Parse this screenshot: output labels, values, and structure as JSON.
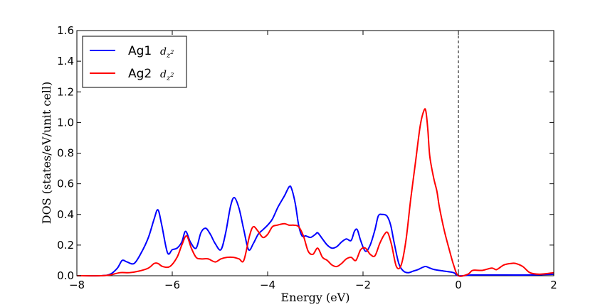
{
  "chart_data": {
    "type": "line",
    "title": "",
    "xlabel": "Energy (eV)",
    "ylabel": "DOS (states/eV/unit cell)",
    "xlim": [
      -8,
      2
    ],
    "ylim": [
      0,
      1.6
    ],
    "xticks": [
      -8,
      -6,
      -4,
      -2,
      0,
      2
    ],
    "yticks": [
      0.0,
      0.2,
      0.4,
      0.6,
      0.8,
      1.0,
      1.2,
      1.4,
      1.6
    ],
    "xtick_labels": [
      "−8",
      "−6",
      "−4",
      "−2",
      "0",
      "2"
    ],
    "ytick_labels": [
      "0.0",
      "0.2",
      "0.4",
      "0.6",
      "0.8",
      "1.0",
      "1.2",
      "1.4",
      "1.6"
    ],
    "grid": false,
    "legend_position": "top-left",
    "fermi_level": 0,
    "series": [
      {
        "name": "Ag1",
        "subscript_base": "d",
        "subscript": "z",
        "superscript": "2",
        "color": "#0000ff",
        "x": [
          -8.0,
          -7.5,
          -7.3,
          -7.15,
          -7.05,
          -6.95,
          -6.8,
          -6.65,
          -6.5,
          -6.38,
          -6.3,
          -6.22,
          -6.1,
          -6.0,
          -5.9,
          -5.8,
          -5.72,
          -5.62,
          -5.5,
          -5.4,
          -5.3,
          -5.2,
          -5.1,
          -4.98,
          -4.88,
          -4.78,
          -4.7,
          -4.6,
          -4.5,
          -4.4,
          -4.3,
          -4.2,
          -4.1,
          -4.0,
          -3.9,
          -3.78,
          -3.65,
          -3.55,
          -3.5,
          -3.42,
          -3.35,
          -3.28,
          -3.2,
          -3.1,
          -3.0,
          -2.95,
          -2.85,
          -2.75,
          -2.65,
          -2.55,
          -2.45,
          -2.35,
          -2.25,
          -2.18,
          -2.12,
          -2.05,
          -1.95,
          -1.85,
          -1.75,
          -1.68,
          -1.6,
          -1.5,
          -1.42,
          -1.35,
          -1.25,
          -1.15,
          -1.05,
          -0.95,
          -0.85,
          -0.7,
          -0.6,
          -0.5,
          -0.3,
          -0.1,
          0.0,
          0.3,
          0.5,
          1.0,
          1.5,
          2.0
        ],
        "y": [
          0.0,
          0.0,
          0.01,
          0.05,
          0.1,
          0.09,
          0.08,
          0.15,
          0.25,
          0.37,
          0.43,
          0.33,
          0.15,
          0.17,
          0.18,
          0.22,
          0.29,
          0.22,
          0.18,
          0.28,
          0.31,
          0.27,
          0.21,
          0.17,
          0.28,
          0.45,
          0.51,
          0.44,
          0.3,
          0.17,
          0.21,
          0.27,
          0.3,
          0.33,
          0.37,
          0.45,
          0.52,
          0.58,
          0.57,
          0.47,
          0.33,
          0.26,
          0.26,
          0.25,
          0.27,
          0.28,
          0.24,
          0.2,
          0.18,
          0.19,
          0.22,
          0.24,
          0.23,
          0.29,
          0.3,
          0.23,
          0.16,
          0.2,
          0.3,
          0.39,
          0.4,
          0.39,
          0.33,
          0.22,
          0.08,
          0.03,
          0.02,
          0.03,
          0.04,
          0.06,
          0.05,
          0.04,
          0.03,
          0.02,
          0.0,
          0.005,
          0.005,
          0.005,
          0.005,
          0.01
        ]
      },
      {
        "name": "Ag2",
        "subscript_base": "d",
        "subscript": "z",
        "superscript": "2",
        "color": "#ff0000",
        "x": [
          -8.0,
          -7.5,
          -7.3,
          -7.1,
          -6.9,
          -6.7,
          -6.5,
          -6.38,
          -6.3,
          -6.2,
          -6.05,
          -5.9,
          -5.8,
          -5.7,
          -5.6,
          -5.5,
          -5.4,
          -5.25,
          -5.1,
          -4.98,
          -4.85,
          -4.72,
          -4.6,
          -4.5,
          -4.38,
          -4.3,
          -4.2,
          -4.1,
          -4.0,
          -3.9,
          -3.8,
          -3.65,
          -3.55,
          -3.45,
          -3.35,
          -3.25,
          -3.15,
          -3.05,
          -2.95,
          -2.85,
          -2.75,
          -2.65,
          -2.55,
          -2.45,
          -2.35,
          -2.25,
          -2.15,
          -2.05,
          -1.95,
          -1.85,
          -1.75,
          -1.65,
          -1.55,
          -1.48,
          -1.4,
          -1.3,
          -1.2,
          -1.1,
          -1.0,
          -0.9,
          -0.8,
          -0.72,
          -0.68,
          -0.64,
          -0.6,
          -0.52,
          -0.45,
          -0.4,
          -0.3,
          -0.2,
          -0.1,
          0.0,
          0.2,
          0.3,
          0.5,
          0.7,
          0.8,
          0.95,
          1.1,
          1.2,
          1.35,
          1.5,
          1.7,
          2.0
        ],
        "y": [
          0.0,
          0.0,
          0.005,
          0.02,
          0.02,
          0.03,
          0.05,
          0.08,
          0.08,
          0.06,
          0.06,
          0.12,
          0.2,
          0.26,
          0.18,
          0.12,
          0.11,
          0.11,
          0.09,
          0.11,
          0.12,
          0.12,
          0.11,
          0.1,
          0.26,
          0.32,
          0.29,
          0.25,
          0.27,
          0.32,
          0.33,
          0.34,
          0.33,
          0.33,
          0.32,
          0.26,
          0.16,
          0.14,
          0.18,
          0.12,
          0.1,
          0.07,
          0.06,
          0.08,
          0.11,
          0.12,
          0.1,
          0.17,
          0.18,
          0.14,
          0.13,
          0.21,
          0.27,
          0.28,
          0.2,
          0.06,
          0.07,
          0.23,
          0.5,
          0.74,
          0.98,
          1.08,
          1.07,
          0.95,
          0.78,
          0.64,
          0.55,
          0.45,
          0.3,
          0.18,
          0.07,
          0.0,
          0.01,
          0.035,
          0.035,
          0.05,
          0.04,
          0.07,
          0.08,
          0.08,
          0.06,
          0.02,
          0.01,
          0.02
        ]
      }
    ]
  }
}
